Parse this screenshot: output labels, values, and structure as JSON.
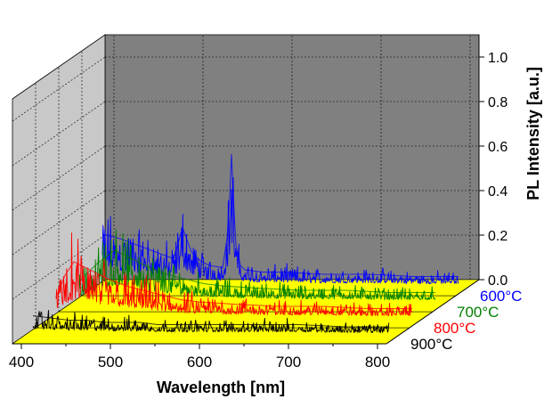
{
  "chart_data": {
    "type": "line",
    "style": "3d-waterfall",
    "title": "",
    "xlabel": "Wavelength [nm]",
    "ylabel": "PL Intensity [a.u.]",
    "xlim": [
      390,
      810
    ],
    "ylim": [
      0,
      1.1
    ],
    "xticks": [
      400,
      500,
      600,
      700,
      800
    ],
    "yticks": [
      0.0,
      0.2,
      0.4,
      0.6,
      0.8,
      1.0
    ],
    "x_tick_labels": [
      "400",
      "500",
      "600",
      "700",
      "800"
    ],
    "y_tick_labels": [
      "0.0",
      "0.2",
      "0.4",
      "0.6",
      "0.8",
      "1.0"
    ],
    "grid": true,
    "colors": {
      "back_wall": "#808080",
      "side_wall": "#c8c8c8",
      "floor_band": "#ffff00"
    },
    "series": [
      {
        "name": "600°C",
        "color": "#0000ff",
        "x": [
          400,
          420,
          440,
          460,
          480,
          490,
          500,
          510,
          520,
          535,
          540,
          543,
          545,
          547,
          550,
          555,
          560,
          580,
          600,
          650,
          700,
          750,
          800
        ],
        "y": [
          0.24,
          0.22,
          0.19,
          0.16,
          0.13,
          0.27,
          0.16,
          0.12,
          0.1,
          0.09,
          0.22,
          0.4,
          0.6,
          0.41,
          0.19,
          0.1,
          0.08,
          0.07,
          0.07,
          0.06,
          0.06,
          0.05,
          0.05
        ]
      },
      {
        "name": "700°C",
        "color": "#008000",
        "x": [
          400,
          420,
          440,
          460,
          480,
          500,
          520,
          540,
          560,
          600,
          650,
          700,
          750,
          800
        ],
        "y": [
          0.1,
          0.18,
          0.24,
          0.2,
          0.16,
          0.13,
          0.11,
          0.09,
          0.08,
          0.07,
          0.06,
          0.06,
          0.05,
          0.05
        ]
      },
      {
        "name": "800°C",
        "color": "#ff0000",
        "x": [
          400,
          410,
          420,
          440,
          460,
          480,
          500,
          520,
          540,
          560,
          600,
          650,
          700,
          750,
          800
        ],
        "y": [
          0.1,
          0.2,
          0.26,
          0.22,
          0.18,
          0.15,
          0.13,
          0.11,
          0.09,
          0.08,
          0.07,
          0.06,
          0.06,
          0.05,
          0.05
        ]
      },
      {
        "name": "900°C",
        "color": "#000000",
        "x": [
          400,
          420,
          440,
          460,
          480,
          500,
          520,
          540,
          560,
          600,
          650,
          700,
          750,
          800
        ],
        "y": [
          0.09,
          0.08,
          0.07,
          0.07,
          0.06,
          0.06,
          0.06,
          0.05,
          0.05,
          0.05,
          0.05,
          0.05,
          0.04,
          0.04
        ]
      }
    ]
  }
}
